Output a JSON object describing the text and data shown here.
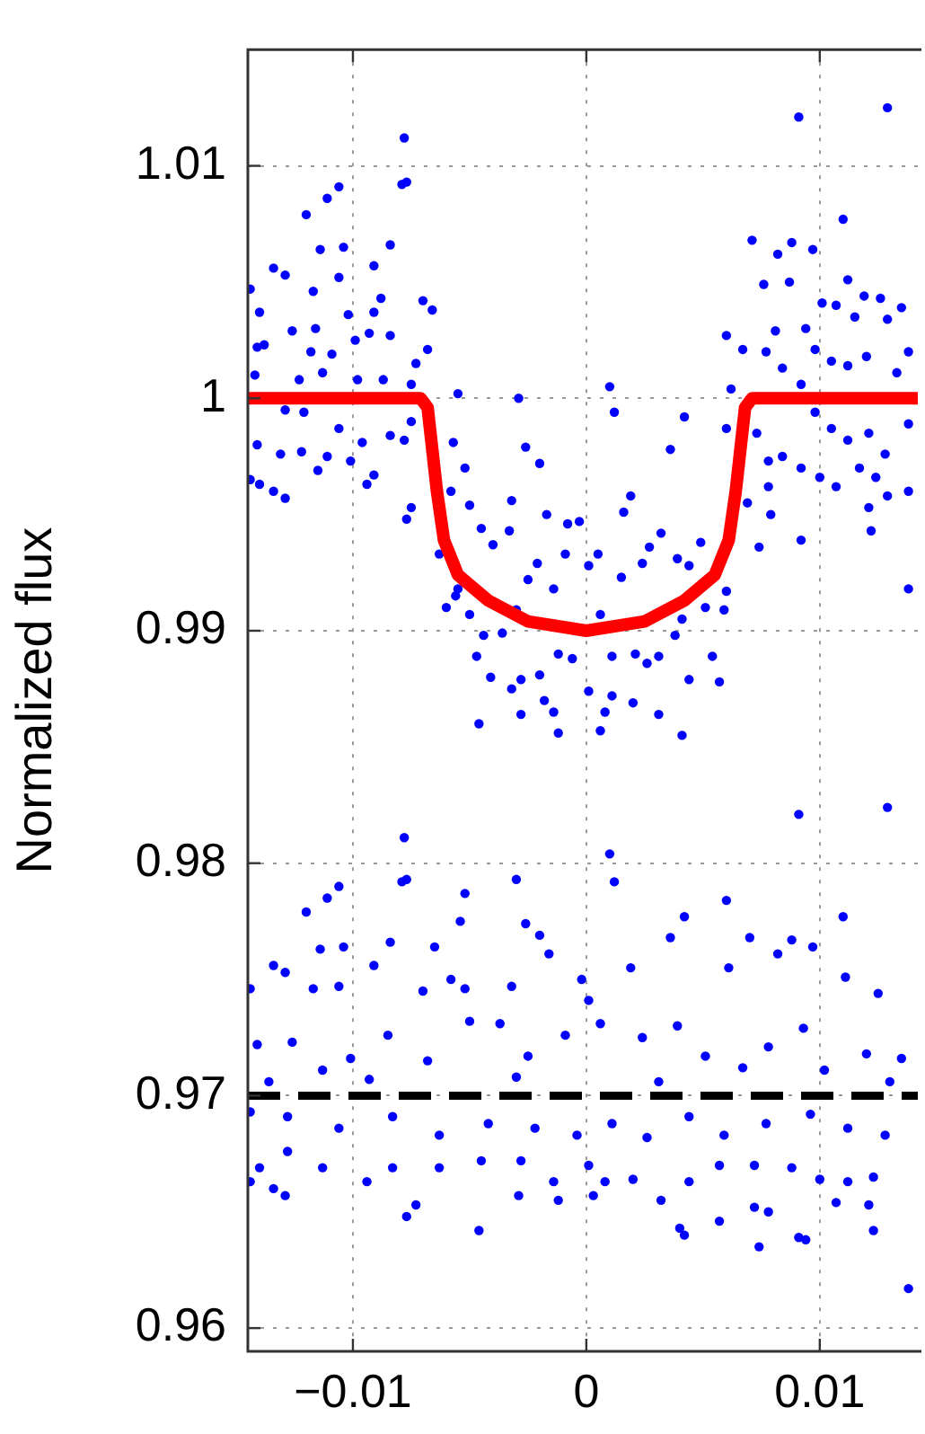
{
  "chart_data": {
    "type": "scatter",
    "ylabel": "Normalized flux",
    "xlim": [
      -0.0145,
      0.0142
    ],
    "ylim": [
      0.959,
      1.015
    ],
    "xticks": [
      {
        "value": -0.01,
        "label": "−0.01"
      },
      0,
      0.01
    ],
    "yticks": [
      0.96,
      0.97,
      0.98,
      0.99,
      1,
      1.01
    ],
    "grid": true,
    "marker": "circle",
    "ref_lines": [
      {
        "axis": "y",
        "value": 0.97,
        "color": "#000000",
        "line_style": "dashed"
      }
    ],
    "series": [
      {
        "color": "#0000ff",
        "x": [
          -0.0144,
          -0.014,
          -0.0141,
          -0.0138,
          -0.0142,
          -0.0134,
          -0.0129,
          -0.012,
          -0.0111,
          -0.0106,
          -0.0117,
          -0.0114,
          -0.0106,
          -0.0104,
          -0.0102,
          -0.0091,
          -0.0084,
          -0.0088,
          -0.0091,
          -0.0078,
          -0.0079,
          -0.0077,
          -0.0126,
          -0.0116,
          -0.0118,
          -0.0109,
          -0.0099,
          -0.0093,
          -0.0084,
          -0.007,
          -0.0066,
          -0.0073,
          -0.0068,
          -0.0123,
          -0.0113,
          -0.0098,
          -0.0087,
          -0.0075,
          -0.0129,
          -0.0121,
          -0.0106,
          -0.0096,
          -0.0141,
          -0.0131,
          -0.0122,
          -0.0111,
          -0.0101,
          -0.0091,
          -0.0078,
          -0.014,
          -0.0134,
          -0.0129,
          -0.0115,
          -0.0094,
          -0.0144,
          -0.0084,
          -0.0075,
          -0.0075,
          -0.0077,
          -0.0057,
          -0.0052,
          -0.0055,
          -0.0058,
          -0.005,
          -0.0063,
          -0.0056,
          -0.005,
          -0.0045,
          -0.004,
          -0.0033,
          -0.0032,
          -0.0029,
          -0.0026,
          -0.002,
          -0.0017,
          -0.0047,
          -0.0041,
          -0.0044,
          -0.0036,
          -0.003,
          -0.0025,
          -0.0021,
          -0.0014,
          -0.0009,
          -0.0008,
          -0.0003,
          0.0001,
          0.0005,
          0.001,
          0.0012,
          0.0016,
          0.0019,
          0.0015,
          0.0024,
          0.0027,
          0.0032,
          0.0036,
          0.0042,
          0.0039,
          0.0044,
          0.0049,
          0.006,
          0.0059,
          0.0051,
          0.0041,
          0.0038,
          0.0031,
          0.0026,
          0.0021,
          0.0011,
          0.0006,
          0.0001,
          -0.0006,
          -0.0012,
          -0.002,
          -0.0028,
          -0.0032,
          -0.0018,
          -0.0014,
          0.0011,
          0.0008,
          0.002,
          0.0031,
          0.0044,
          0.0054,
          0.0057,
          -0.0046,
          -0.0028,
          -0.006,
          -0.0055,
          -0.0012,
          0.0006,
          0.0041,
          0.006,
          0.0067,
          0.0062,
          0.006,
          0.0069,
          0.0074,
          0.0071,
          0.0076,
          0.0082,
          0.0088,
          0.0097,
          0.0081,
          0.0087,
          0.0094,
          0.0091,
          0.0129,
          0.011,
          0.0112,
          0.0119,
          0.0126,
          0.0135,
          0.0129,
          0.0115,
          0.0107,
          0.0101,
          0.0098,
          0.0105,
          0.0112,
          0.012,
          0.0133,
          0.0138,
          0.0077,
          0.0084,
          0.0092,
          0.0098,
          0.0105,
          0.0112,
          0.0121,
          0.0128,
          0.0138,
          0.0073,
          0.0078,
          0.0084,
          0.0092,
          0.01,
          0.0107,
          0.0117,
          0.0124,
          0.0129,
          0.0122,
          0.0138,
          0.0138,
          0.0078,
          0.0079,
          0.0092,
          0.0121
        ],
        "values": [
          1.0047,
          1.0037,
          1.0022,
          1.0023,
          1.001,
          1.0056,
          1.0053,
          1.0079,
          1.0086,
          1.0091,
          1.0046,
          1.0064,
          1.0052,
          1.0065,
          1.0036,
          1.0057,
          1.0066,
          1.0043,
          1.0037,
          1.0112,
          1.0092,
          1.0093,
          1.0029,
          1.003,
          1.002,
          1.0019,
          1.0025,
          1.0028,
          1.0027,
          1.0042,
          1.0038,
          1.0015,
          1.0021,
          1.0008,
          1.0011,
          1.0008,
          1.0008,
          1.0006,
          0.9995,
          0.9994,
          0.9987,
          0.9981,
          0.998,
          0.9976,
          0.9977,
          0.9975,
          0.9973,
          0.9967,
          0.9982,
          0.9963,
          0.996,
          0.9957,
          0.9969,
          0.9963,
          0.9965,
          0.9984,
          0.999,
          0.9953,
          0.9948,
          0.9981,
          0.997,
          1.0002,
          0.996,
          0.9954,
          0.9933,
          0.9915,
          0.9907,
          0.9944,
          0.9937,
          0.9943,
          0.9956,
          1,
          0.9979,
          0.9972,
          0.995,
          0.9889,
          0.988,
          0.9898,
          0.9899,
          0.9909,
          0.9922,
          0.9929,
          0.9918,
          0.9933,
          0.9946,
          0.9947,
          0.9928,
          0.9933,
          1.0005,
          0.9994,
          0.9951,
          0.9958,
          0.9923,
          0.9929,
          0.9936,
          0.9942,
          0.9978,
          0.9992,
          0.9931,
          0.9928,
          0.9938,
          0.9917,
          0.9909,
          0.991,
          0.9905,
          0.9898,
          0.9889,
          0.9886,
          0.989,
          0.9889,
          0.9907,
          0.9874,
          0.9888,
          0.989,
          0.9881,
          0.9879,
          0.9875,
          0.987,
          0.9865,
          0.9872,
          0.9865,
          0.9869,
          0.9864,
          0.9879,
          0.9889,
          0.9878,
          0.986,
          0.9864,
          0.991,
          0.9918,
          0.9856,
          0.9857,
          0.9855,
          1.0027,
          1.0021,
          1.0004,
          0.9987,
          0.9955,
          0.9936,
          1.0068,
          1.0049,
          1.0062,
          1.0067,
          1.0064,
          1.0029,
          1.005,
          1.003,
          1.0121,
          1.0125,
          1.0077,
          1.0051,
          1.0044,
          1.0043,
          1.0039,
          1.0034,
          1.0035,
          1.004,
          1.0041,
          1.0021,
          1.0016,
          1.0014,
          1.0018,
          1.0011,
          1.002,
          1.002,
          1.0013,
          1.0006,
          0.9994,
          0.9987,
          0.9982,
          0.9985,
          0.9976,
          0.9989,
          0.9985,
          0.9973,
          0.9975,
          0.997,
          0.9966,
          0.9962,
          0.997,
          0.9966,
          0.9958,
          0.9943,
          0.996,
          0.9918,
          0.9962,
          0.995,
          0.9939,
          0.9953
        ]
      },
      {
        "color": "#0000ff",
        "x": [
          -0.0078,
          -0.0079,
          -0.0077,
          -0.012,
          -0.0111,
          -0.0106,
          -0.0114,
          -0.0104,
          -0.0091,
          -0.0084,
          -0.0134,
          -0.0129,
          -0.0144,
          -0.0117,
          -0.0106,
          -0.007,
          -0.0065,
          -0.0058,
          -0.0052,
          -0.0054,
          -0.0052,
          -0.003,
          -0.0026,
          -0.002,
          -0.0016,
          0.001,
          0.0012,
          0.0036,
          0.0042,
          0.006,
          0.007,
          0.0088,
          0.0097,
          0.0091,
          0.0129,
          0.011,
          0.0111,
          0.0125,
          0.0082,
          0.0061,
          0.0019,
          -0.0002,
          -0.0032,
          -0.0141,
          -0.0126,
          -0.0113,
          -0.0101,
          -0.0085,
          -0.0068,
          -0.005,
          -0.0037,
          -0.0025,
          -0.0009,
          0.0001,
          0.0006,
          0.0024,
          0.0039,
          0.0051,
          0.0067,
          0.0078,
          0.0093,
          0.0102,
          0.012,
          0.0135,
          -0.0136,
          -0.0093,
          -0.003,
          0.0031,
          0.013,
          -0.0144,
          -0.0128,
          -0.0106,
          -0.0083,
          -0.0063,
          -0.0042,
          -0.0022,
          -0.0004,
          0.0011,
          0.0026,
          0.0044,
          0.0059,
          0.0077,
          0.0096,
          0.0112,
          0.0128,
          -0.014,
          -0.0128,
          -0.0113,
          -0.0094,
          -0.0083,
          -0.0063,
          -0.0045,
          -0.0028,
          -0.0014,
          0.0001,
          0.0008,
          0.002,
          0.0032,
          0.0044,
          0.0057,
          0.0072,
          0.0088,
          0.01,
          0.0112,
          0.0123,
          -0.0144,
          -0.0129,
          -0.0134,
          -0.0077,
          -0.0073,
          -0.0046,
          -0.0029,
          -0.0012,
          0.0003,
          0.004,
          0.0042,
          0.0057,
          0.0072,
          0.0074,
          0.0078,
          0.0091,
          0.0094,
          0.0107,
          0.0121,
          0.0123,
          0.0138
        ],
        "values": [
          0.9811,
          0.9792,
          0.9793,
          0.9779,
          0.9785,
          0.979,
          0.9763,
          0.9764,
          0.9756,
          0.9766,
          0.9756,
          0.9753,
          0.9746,
          0.9746,
          0.9747,
          0.9745,
          0.9764,
          0.975,
          0.9746,
          0.9775,
          0.9787,
          0.9793,
          0.9774,
          0.9769,
          0.9761,
          0.9804,
          0.9792,
          0.9768,
          0.9777,
          0.9784,
          0.9768,
          0.9767,
          0.9764,
          0.9821,
          0.9824,
          0.9777,
          0.9751,
          0.9744,
          0.9761,
          0.9755,
          0.9755,
          0.975,
          0.9747,
          0.9722,
          0.9723,
          0.9711,
          0.9716,
          0.9726,
          0.9715,
          0.9732,
          0.9731,
          0.9717,
          0.9726,
          0.9741,
          0.9731,
          0.9725,
          0.973,
          0.9717,
          0.9712,
          0.9721,
          0.9729,
          0.9711,
          0.9718,
          0.9716,
          0.9706,
          0.9707,
          0.9708,
          0.9706,
          0.9706,
          0.9693,
          0.9691,
          0.9686,
          0.9691,
          0.9683,
          0.9688,
          0.9686,
          0.9683,
          0.9688,
          0.9682,
          0.9691,
          0.9683,
          0.9688,
          0.9692,
          0.9686,
          0.9683,
          0.9669,
          0.9676,
          0.9669,
          0.9663,
          0.9669,
          0.9669,
          0.9672,
          0.9672,
          0.9663,
          0.967,
          0.9663,
          0.9664,
          0.9655,
          0.9663,
          0.967,
          0.967,
          0.9669,
          0.9664,
          0.9663,
          0.9665,
          0.9663,
          0.9657,
          0.966,
          0.9648,
          0.9653,
          0.9642,
          0.9657,
          0.9655,
          0.9657,
          0.9643,
          0.964,
          0.9646,
          0.9652,
          0.9635,
          0.965,
          0.9639,
          0.9638,
          0.9654,
          0.9653,
          0.9642,
          0.9617
        ]
      },
      {
        "type": "line",
        "color": "#ff0000",
        "marker": "none",
        "line_style": "solid",
        "x": [
          -0.0145,
          -0.0071,
          -0.0068,
          -0.0064,
          -0.0061,
          -0.0055,
          -0.0042,
          -0.0025,
          0,
          0.0025,
          0.0042,
          0.0055,
          0.0061,
          0.0064,
          0.0068,
          0.0071,
          0.0142
        ],
        "values": [
          1,
          1,
          0.9996,
          0.996,
          0.9939,
          0.9924,
          0.9913,
          0.9904,
          0.99,
          0.9904,
          0.9913,
          0.9924,
          0.9939,
          0.996,
          0.9996,
          1,
          1
        ]
      }
    ]
  }
}
